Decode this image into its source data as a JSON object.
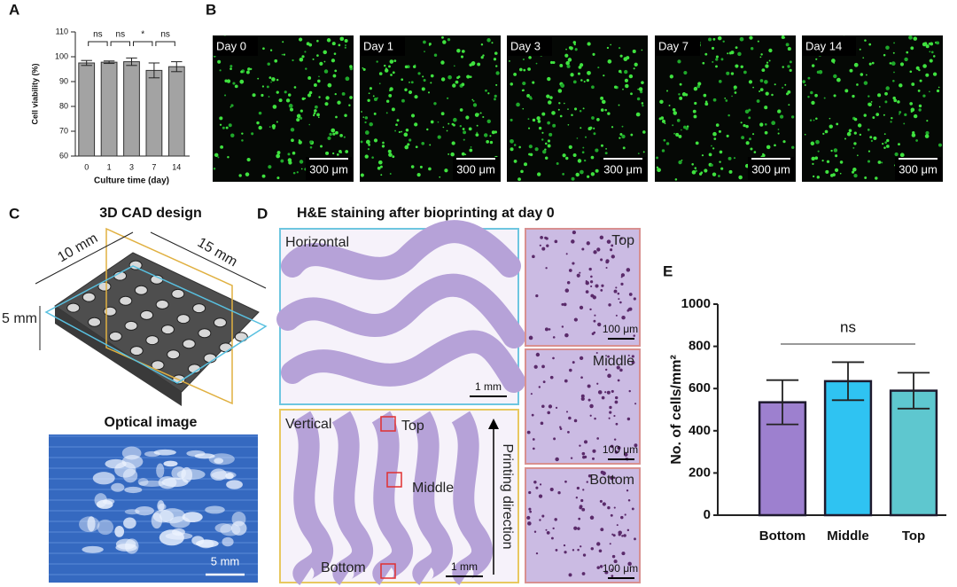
{
  "chart_data": [
    {
      "type": "bar",
      "categories": [
        "0",
        "1",
        "3",
        "7",
        "14"
      ],
      "values": [
        97.5,
        97.8,
        98,
        94.5,
        96
      ],
      "errors": [
        1,
        0.5,
        1.5,
        3,
        2
      ],
      "color": "#a3a3a3",
      "edgecolor": "#333333",
      "ylim": [
        60,
        110
      ],
      "yticks": [
        60,
        70,
        80,
        90,
        100,
        110
      ],
      "xlabel": "Culture time (day)",
      "ylabel": "Cell viability (%)",
      "comparisons": [
        {
          "pair": [
            "0",
            "1"
          ],
          "label": "ns"
        },
        {
          "pair": [
            "1",
            "3"
          ],
          "label": "ns"
        },
        {
          "pair": [
            "3",
            "7"
          ],
          "label": "*"
        },
        {
          "pair": [
            "7",
            "14"
          ],
          "label": "ns"
        }
      ]
    },
    {
      "type": "bar",
      "categories": [
        "Bottom",
        "Middle",
        "Top"
      ],
      "values": [
        535,
        635,
        590
      ],
      "errors": [
        105,
        90,
        85
      ],
      "colors": [
        "#9d80cf",
        "#2fc3f2",
        "#5ec7cf"
      ],
      "edgecolor": "#1e1a2e",
      "ylim": [
        0,
        1000
      ],
      "yticks": [
        0,
        200,
        400,
        600,
        800,
        1000
      ],
      "ylabel": "No. of cells/mm²",
      "annotation": "ns"
    }
  ],
  "panels": {
    "labels": [
      "A",
      "B",
      "C",
      "D",
      "E"
    ],
    "b": {
      "days": [
        "Day 0",
        "Day 1",
        "Day 3",
        "Day 7",
        "Day 14"
      ],
      "scale": "300 μm"
    },
    "c": {
      "title": "3D CAD design",
      "dims": [
        "10 mm",
        "15 mm",
        "5 mm"
      ],
      "optical_title": "Optical image",
      "scale": "5 mm"
    },
    "d": {
      "title": "H&E staining after bioprinting at day 0",
      "horizontal": "Horizontal",
      "vertical": "Vertical",
      "scale": "1 mm",
      "regions": [
        "Top",
        "Middle",
        "Bottom"
      ],
      "direction": "Printing direction",
      "inset_scale": "100 μm"
    }
  }
}
